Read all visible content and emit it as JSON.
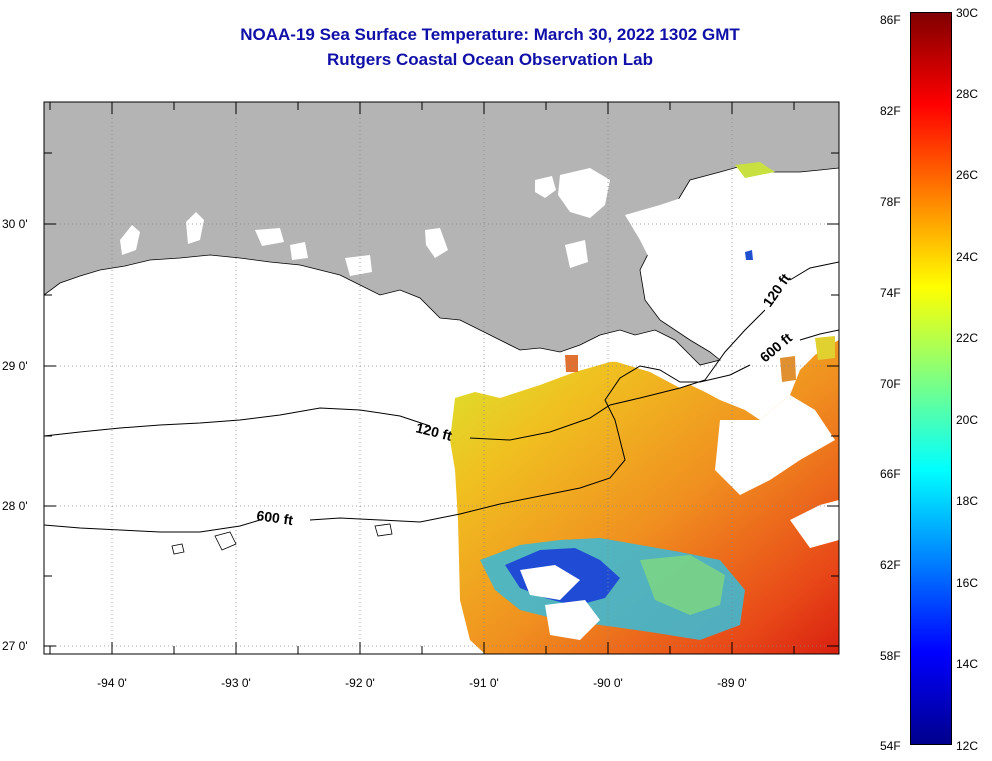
{
  "title": {
    "line1": "NOAA-19 Sea Surface Temperature:  March 30, 2022 1302 GMT",
    "line2": "Rutgers Coastal Ocean Observation Lab"
  },
  "map": {
    "lat_labels": [
      "30 0'",
      "29 0'",
      "28 0'",
      "27 0'"
    ],
    "lon_labels": [
      "-94 0'",
      "-93 0'",
      "-92 0'",
      "-91 0'",
      "-90 0'",
      "-89 0'"
    ],
    "isobath_labels": [
      {
        "text": "120 ft",
        "name": "isobath-120ft-west"
      },
      {
        "text": "120 ft",
        "name": "isobath-120ft-east"
      },
      {
        "text": "600 ft",
        "name": "isobath-600ft-west"
      },
      {
        "text": "600 ft",
        "name": "isobath-600ft-east"
      }
    ],
    "colors": {
      "land": "#b4b4b4",
      "title": "#1010a8",
      "no_data": "#ffffff"
    }
  },
  "colorbar": {
    "fahrenheit_labels": [
      "86F",
      "82F",
      "78F",
      "74F",
      "70F",
      "66F",
      "62F",
      "58F",
      "54F"
    ],
    "celsius_labels": [
      "30C",
      "28C",
      "26C",
      "24C",
      "22C",
      "20C",
      "18C",
      "16C",
      "14C",
      "12C"
    ],
    "colormap": [
      "#00008c",
      "#0000ff",
      "#0080ff",
      "#00ffff",
      "#80ff80",
      "#ffff00",
      "#ff8000",
      "#ff0000",
      "#800000"
    ]
  }
}
